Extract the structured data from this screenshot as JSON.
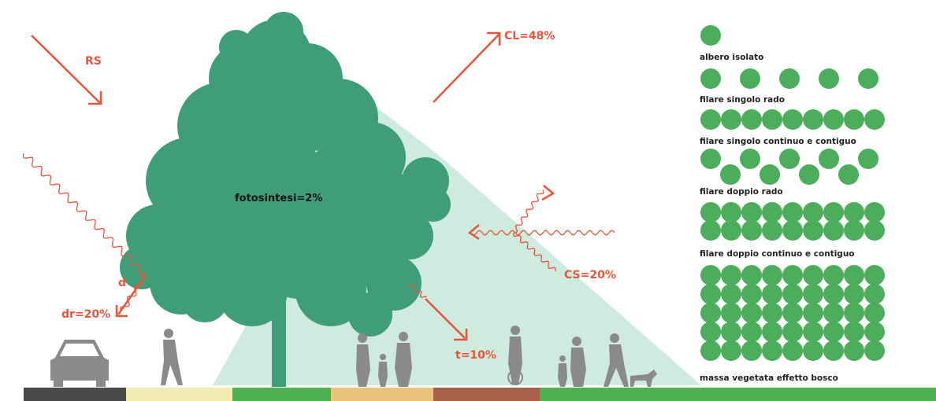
{
  "diagram": {
    "labels": {
      "rs": "RS",
      "cl": "CL=48%",
      "photosynthesis": "fotosintesi=2%",
      "d": "d",
      "dr": "dr=20%",
      "t": "t=10%",
      "cs": "CS=20%"
    },
    "legend": [
      "albero isolato",
      "filare singolo rado",
      "filare singolo continuo e contiguo",
      "filare doppio rado",
      "filare doppio continuo e contiguo",
      "massa vegetata effetto bosco"
    ]
  }
}
